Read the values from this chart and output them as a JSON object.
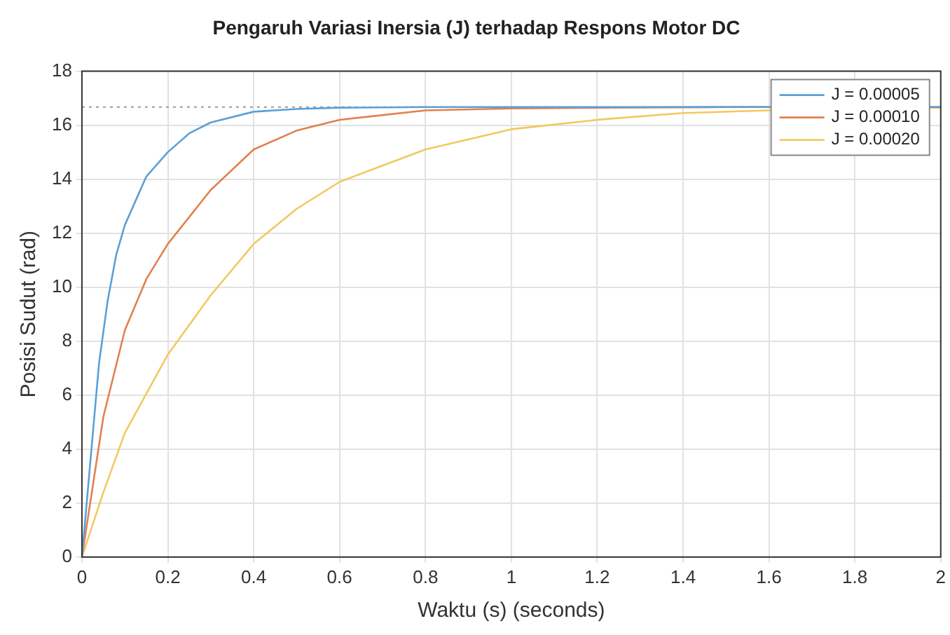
{
  "chart_data": {
    "type": "line",
    "title": "Pengaruh Variasi Inersia (J) terhadap Respons Motor DC",
    "xlabel": "Waktu (s) (seconds)",
    "ylabel": "Posisi Sudut (rad)",
    "xlim": [
      0,
      2
    ],
    "xticks": [
      0,
      0.2,
      0.4,
      0.6,
      0.8,
      1,
      1.2,
      1.4,
      1.6,
      1.8,
      2
    ],
    "ylim": [
      0,
      18
    ],
    "yticks": [
      0,
      2,
      4,
      6,
      8,
      10,
      12,
      14,
      16,
      18
    ],
    "grid": true,
    "legend": "top right",
    "marker": "none",
    "line_style": "solid",
    "ref_lines": [
      {
        "axis": "y",
        "value": 16.67,
        "color": "#999999",
        "line_style": "dotted"
      }
    ],
    "series": [
      {
        "name": "J = 0.00005",
        "color": "#5aa0d8",
        "x": [
          0,
          0.02,
          0.04,
          0.06,
          0.08,
          0.1,
          0.15,
          0.2,
          0.25,
          0.3,
          0.4,
          0.5,
          0.6,
          0.8,
          1,
          1.5,
          2
        ],
        "values": [
          0,
          3.6,
          7.2,
          9.5,
          11.2,
          12.3,
          14.1,
          15.0,
          15.7,
          16.1,
          16.5,
          16.6,
          16.65,
          16.67,
          16.67,
          16.67,
          16.67
        ]
      },
      {
        "name": "J = 0.00010",
        "color": "#e2804f",
        "x": [
          0,
          0.05,
          0.1,
          0.15,
          0.2,
          0.3,
          0.4,
          0.5,
          0.6,
          0.8,
          1,
          1.2,
          1.5,
          2
        ],
        "values": [
          0,
          5.2,
          8.4,
          10.3,
          11.6,
          13.6,
          15.1,
          15.8,
          16.2,
          16.55,
          16.62,
          16.65,
          16.67,
          16.67
        ]
      },
      {
        "name": "J = 0.00020",
        "color": "#f2c860",
        "x": [
          0,
          0.05,
          0.1,
          0.2,
          0.3,
          0.4,
          0.5,
          0.6,
          0.8,
          1,
          1.2,
          1.4,
          1.6,
          2
        ],
        "values": [
          0,
          2.4,
          4.6,
          7.5,
          9.7,
          11.6,
          12.9,
          13.9,
          15.1,
          15.85,
          16.2,
          16.45,
          16.55,
          16.65
        ]
      }
    ]
  }
}
